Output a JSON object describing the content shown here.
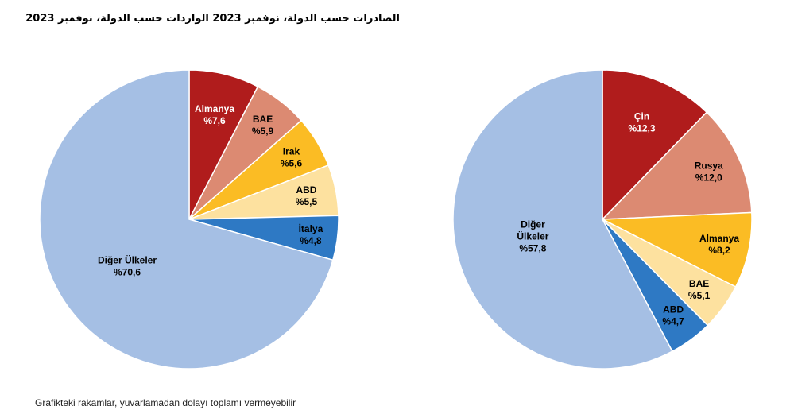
{
  "title": "الصادرات حسب الدولة، نوفمبر 2023 الواردات حسب الدولة، نوفمبر 2023",
  "footnote": "Grafikteki rakamlar, yuvarlamadan dolayı toplamı vermeyebilir",
  "chart_data": [
    {
      "type": "pie",
      "start": "12 o'clock",
      "direction": "clockwise",
      "slices": [
        {
          "name": "Almanya",
          "value_label": "%7,6",
          "value": 7.6,
          "color": "#b01c1c",
          "text_color": "#ffffff"
        },
        {
          "name": "BAE",
          "value_label": "%5,9",
          "value": 5.9,
          "color": "#dc8a72",
          "text_color": "#000000"
        },
        {
          "name": "Irak",
          "value_label": "%5,6",
          "value": 5.6,
          "color": "#fbbc24",
          "text_color": "#000000"
        },
        {
          "name": "ABD",
          "value_label": "%5,5",
          "value": 5.5,
          "color": "#fde19f",
          "text_color": "#000000"
        },
        {
          "name": "İtalya",
          "value_label": "%4,8",
          "value": 4.8,
          "color": "#2e79c4",
          "text_color": "#000000"
        },
        {
          "name": "Diğer Ülkeler",
          "value_label": "%70,6",
          "value": 70.6,
          "color": "#a5bfe4",
          "text_color": "#000000"
        }
      ]
    },
    {
      "type": "pie",
      "start": "12 o'clock",
      "direction": "clockwise",
      "slices": [
        {
          "name": "Çin",
          "value_label": "%12,3",
          "value": 12.3,
          "color": "#b01c1c",
          "text_color": "#ffffff"
        },
        {
          "name": "Rusya",
          "value_label": "%12,0",
          "value": 12.0,
          "color": "#dc8a72",
          "text_color": "#000000"
        },
        {
          "name": "Almanya",
          "value_label": "%8,2",
          "value": 8.2,
          "color": "#fbbc24",
          "text_color": "#000000"
        },
        {
          "name": "BAE",
          "value_label": "%5,1",
          "value": 5.1,
          "color": "#fde19f",
          "text_color": "#000000"
        },
        {
          "name": "ABD",
          "value_label": "%4,7",
          "value": 4.7,
          "color": "#2e79c4",
          "text_color": "#000000"
        },
        {
          "name": "Diğer\nÜlkeler",
          "value_label": "%57,8",
          "value": 57.8,
          "color": "#a5bfe4",
          "text_color": "#000000"
        }
      ]
    }
  ]
}
